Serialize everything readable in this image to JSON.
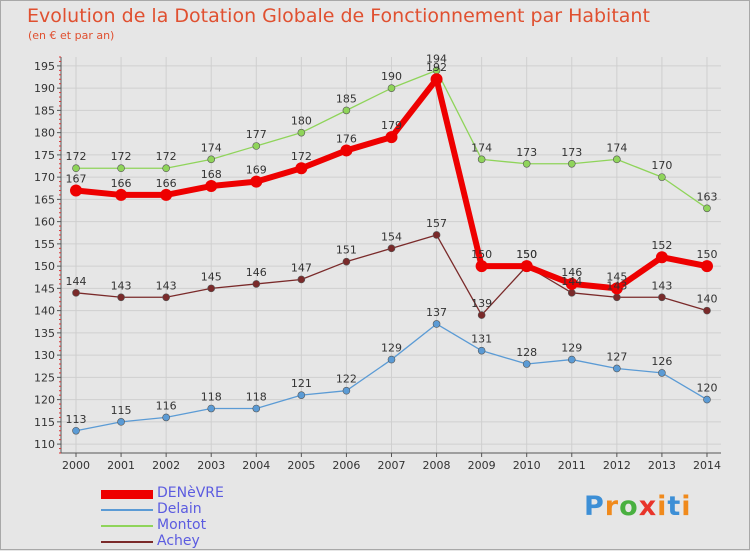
{
  "title": "Evolution de la Dotation Globale de Fonctionnement par Habitant",
  "subtitle": "(en € et par an)",
  "logo_text": "Proxiti",
  "chart_data": {
    "type": "line",
    "title": "Evolution de la Dotation Globale de Fonctionnement par Habitant",
    "subtitle": "(en € et par an)",
    "x": [
      2000,
      2001,
      2002,
      2003,
      2004,
      2005,
      2006,
      2007,
      2008,
      2009,
      2010,
      2011,
      2012,
      2013,
      2014
    ],
    "ylim": [
      108,
      197
    ],
    "yticks": [
      110,
      115,
      120,
      125,
      130,
      135,
      140,
      145,
      150,
      155,
      160,
      165,
      170,
      175,
      180,
      185,
      190,
      195
    ],
    "grid": true,
    "legend_position": "bottom-left",
    "series": [
      {
        "name": "DENèVRE",
        "color": "#ee0000",
        "values": [
          167,
          166,
          166,
          168,
          169,
          172,
          176,
          179,
          192,
          150,
          150,
          146,
          145,
          152,
          150
        ]
      },
      {
        "name": "Delain",
        "color": "#5b9bd5",
        "values": [
          113,
          115,
          116,
          118,
          118,
          121,
          122,
          129,
          137,
          131,
          128,
          129,
          127,
          126,
          120
        ]
      },
      {
        "name": "Montot",
        "color": "#8fd45a",
        "values": [
          172,
          172,
          172,
          174,
          177,
          180,
          185,
          190,
          194,
          174,
          173,
          173,
          174,
          170,
          163
        ]
      },
      {
        "name": "Achey",
        "color": "#7a2a2a",
        "values": [
          144,
          143,
          143,
          145,
          146,
          147,
          151,
          154,
          157,
          139,
          150,
          144,
          143,
          143,
          140
        ]
      }
    ]
  }
}
